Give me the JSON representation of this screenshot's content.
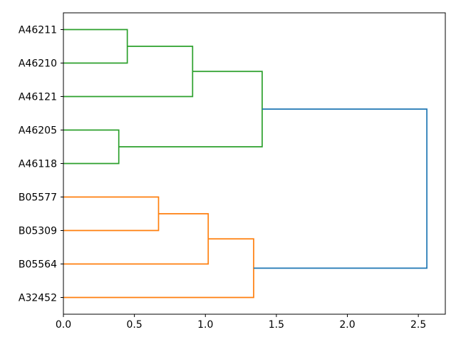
{
  "chart_data": {
    "type": "dendrogram",
    "orientation": "right",
    "title": "",
    "xlabel": "",
    "ylabel": "",
    "grid": false,
    "legend": null,
    "leaves": [
      "A46211",
      "A46210",
      "A46121",
      "A46205",
      "A46118",
      "B05577",
      "B05309",
      "B05564",
      "A32452"
    ],
    "leaf_axis": {
      "positions": [
        5,
        15,
        25,
        35,
        45,
        55,
        65,
        75,
        85
      ],
      "lim": [
        0,
        90
      ]
    },
    "distance_axis": {
      "ticks": [
        0.0,
        0.5,
        1.0,
        1.5,
        2.0,
        2.5
      ],
      "tick_labels": [
        "0.0",
        "0.5",
        "1.0",
        "1.5",
        "2.0",
        "2.5"
      ],
      "lim": [
        0,
        2.69
      ]
    },
    "colors": {
      "cluster_green": "#2ca02c",
      "cluster_orange": "#ff7f0e",
      "root_blue": "#1f77b4",
      "spine": "#000000",
      "background": "#ffffff"
    },
    "links": [
      {
        "id": "G1",
        "children": [
          "leaf:0",
          "leaf:1"
        ],
        "distance": 0.45,
        "color": "#2ca02c"
      },
      {
        "id": "G2",
        "children": [
          "G1",
          "leaf:2"
        ],
        "distance": 0.91,
        "color": "#2ca02c"
      },
      {
        "id": "G3",
        "children": [
          "leaf:3",
          "leaf:4"
        ],
        "distance": 0.39,
        "color": "#2ca02c"
      },
      {
        "id": "G4",
        "children": [
          "G2",
          "G3"
        ],
        "distance": 1.4,
        "color": "#2ca02c"
      },
      {
        "id": "O1",
        "children": [
          "leaf:5",
          "leaf:6"
        ],
        "distance": 0.67,
        "color": "#ff7f0e"
      },
      {
        "id": "O2",
        "children": [
          "O1",
          "leaf:7"
        ],
        "distance": 1.02,
        "color": "#ff7f0e"
      },
      {
        "id": "O3",
        "children": [
          "O2",
          "leaf:8"
        ],
        "distance": 1.34,
        "color": "#ff7f0e"
      },
      {
        "id": "ROOT",
        "children": [
          "G4",
          "O3"
        ],
        "distance": 2.56,
        "color": "#1f77b4"
      }
    ]
  }
}
